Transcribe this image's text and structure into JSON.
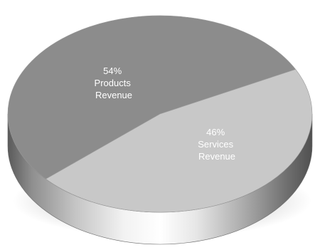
{
  "chart_data": {
    "type": "pie",
    "slices": [
      {
        "value": 54,
        "percent_label": "54%",
        "label_line1": "Products",
        "label_line2": "Revenue",
        "color": "#8c8c8c"
      },
      {
        "value": 46,
        "percent_label": "46%",
        "label_line1": "Services",
        "label_line2": "Revenue",
        "color": "#c8c8c8"
      }
    ]
  }
}
